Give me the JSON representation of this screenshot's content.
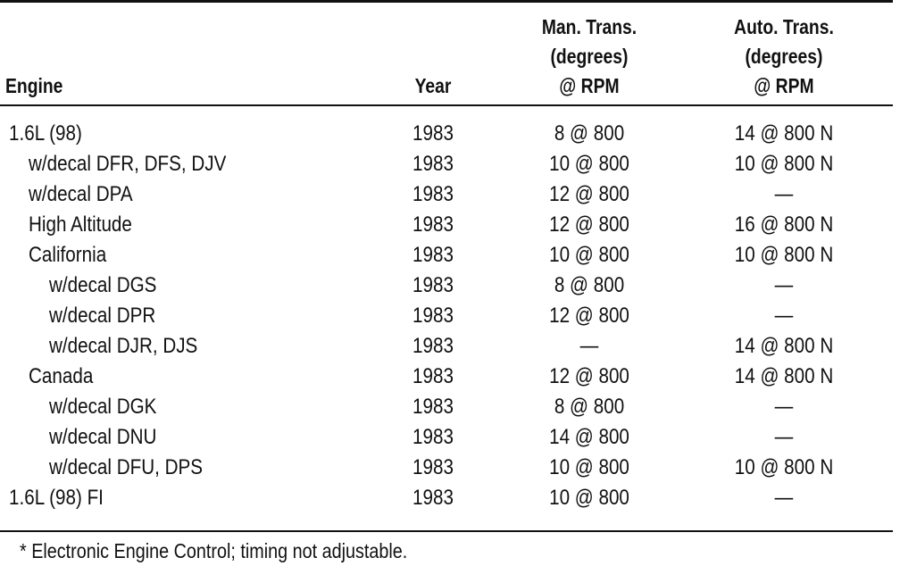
{
  "table": {
    "headers": {
      "engine": "Engine",
      "year": "Year",
      "man_trans": [
        "Man. Trans.",
        "(degrees)",
        "@ RPM"
      ],
      "auto_trans": [
        "Auto. Trans.",
        "(degrees)",
        "@ RPM"
      ]
    },
    "rows": [
      {
        "engine": "1.6L (98)",
        "year": "1983",
        "man": "8 @ 800",
        "auto": "14 @ 800 N"
      },
      {
        "engine": "w/decal DFR, DFS, DJV",
        "year": "1983",
        "man": "10 @ 800",
        "auto": "10 @ 800 N"
      },
      {
        "engine": "w/decal DPA",
        "year": "1983",
        "man": "12 @ 800",
        "auto": "—"
      },
      {
        "engine": "High Altitude",
        "year": "1983",
        "man": "12 @ 800",
        "auto": "16 @ 800 N"
      },
      {
        "engine": "California",
        "year": "1983",
        "man": "10 @ 800",
        "auto": "10 @ 800 N"
      },
      {
        "engine": "w/decal DGS",
        "year": "1983",
        "man": "8 @ 800",
        "auto": "—"
      },
      {
        "engine": "w/decal DPR",
        "year": "1983",
        "man": "12 @ 800",
        "auto": "—"
      },
      {
        "engine": "w/decal DJR, DJS",
        "year": "1983",
        "man": "—",
        "auto": "14 @ 800 N"
      },
      {
        "engine": "Canada",
        "year": "1983",
        "man": "12 @ 800",
        "auto": "14 @ 800 N"
      },
      {
        "engine": "w/decal DGK",
        "year": "1983",
        "man": "8 @ 800",
        "auto": "—"
      },
      {
        "engine": "w/decal DNU",
        "year": "1983",
        "man": "14 @ 800",
        "auto": "—"
      },
      {
        "engine": "w/decal DFU, DPS",
        "year": "1983",
        "man": "10 @ 800",
        "auto": "10 @ 800 N"
      },
      {
        "engine": "1.6L (98) FI",
        "year": "1983",
        "man": "10 @ 800",
        "auto": "—"
      }
    ],
    "footnote": "* Electronic Engine Control; timing not adjustable."
  }
}
